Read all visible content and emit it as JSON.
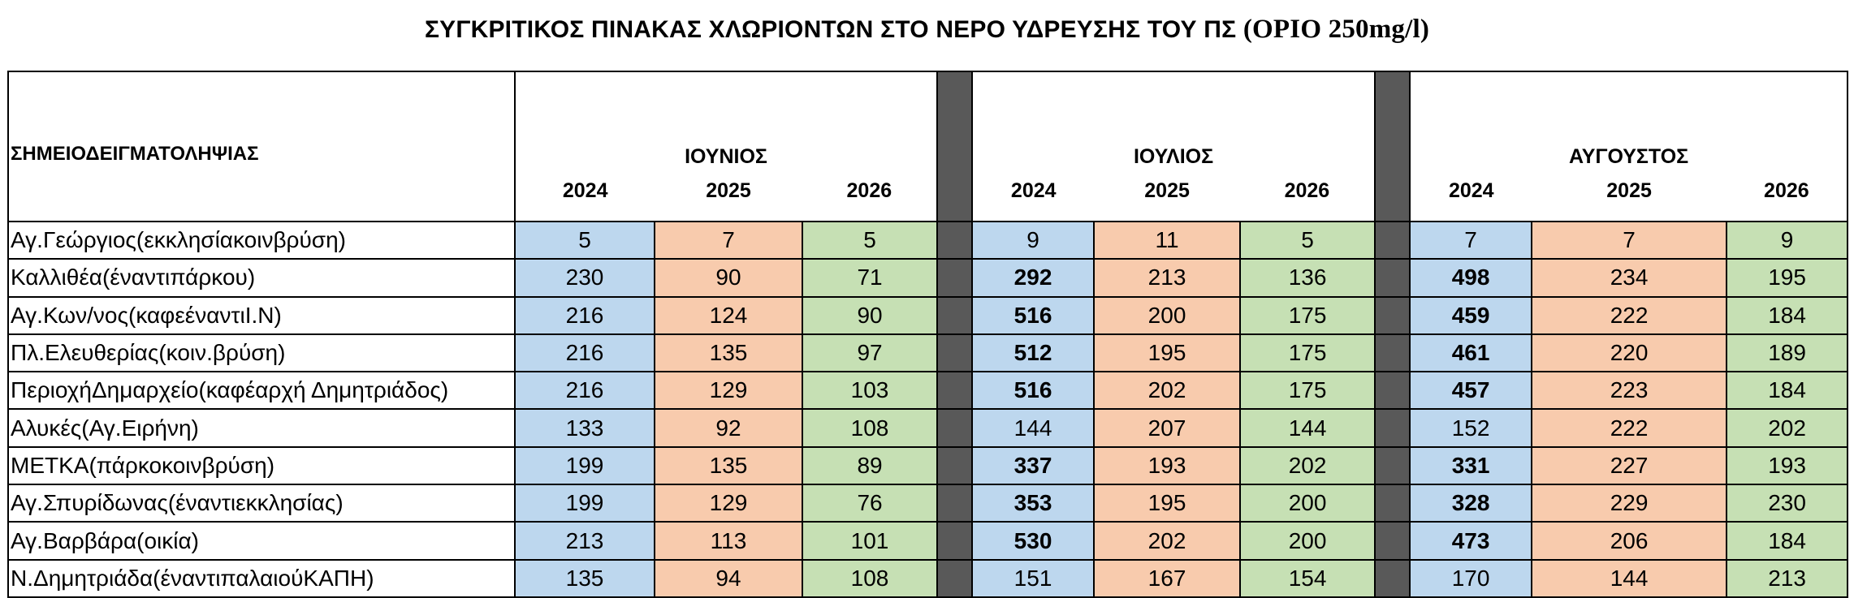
{
  "title": {
    "main": "ΣΥΓΚΡΙΤΙΚΟΣ ΠΙΝΑΚΑΣ ΧΛΩΡΙΟΝΤΩΝ ΣΤΟ ΝΕΡΟ ΥΔΡΕΥΣΗΣ ΤΟΥ ΠΣ",
    "limit": "(ΟΡΙΟ 250mg/l)"
  },
  "header": {
    "point_label": "ΣΗΜΕΙΟΔΕΙΓΜΑΤΟΛΗΨΙΑΣ",
    "months": [
      {
        "name": "ΙΟΥΝΙΟΣ",
        "years": [
          "2024",
          "2025",
          "2026"
        ]
      },
      {
        "name": "ΙΟΥΛΙΟΣ",
        "years": [
          "2024",
          "2025",
          "2026"
        ]
      },
      {
        "name": "ΑΥΓΟΥΣΤΟΣ",
        "years": [
          "2024",
          "2025",
          "2026"
        ]
      }
    ]
  },
  "colors": {
    "y2024": "#bdd7ee",
    "y2025": "#f8cbad",
    "y2026": "#c6e0b4",
    "separator": "#595959"
  },
  "rows": [
    {
      "name": "Αγ.Γεώργιος(εκκλησίακοινβρύση)",
      "values": [
        "5",
        "7",
        "5",
        "9",
        "11",
        "5",
        "7",
        "7",
        "9"
      ],
      "bold": []
    },
    {
      "name": "Καλλιθέα(έναντιπάρκου)",
      "values": [
        "230",
        "90",
        "71",
        "292",
        "213",
        "136",
        "498",
        "234",
        "195"
      ],
      "bold": [
        3,
        6
      ]
    },
    {
      "name": "Αγ.Κων/νος(καφεέναντιΙ.Ν)",
      "values": [
        "216",
        "124",
        "90",
        "516",
        "200",
        "175",
        "459",
        "222",
        "184"
      ],
      "bold": [
        3,
        6
      ]
    },
    {
      "name": "Πλ.Ελευθερίας(κοιν.βρύση)",
      "values": [
        "216",
        "135",
        "97",
        "512",
        "195",
        "175",
        "461",
        "220",
        "189"
      ],
      "bold": [
        3,
        6
      ]
    },
    {
      "name": "ΠεριοχήΔημαρχείο(καφέαρχή Δημητριάδος)",
      "values": [
        "216",
        "129",
        "103",
        "516",
        "202",
        "175",
        "457",
        "223",
        "184"
      ],
      "bold": [
        3,
        6
      ]
    },
    {
      "name": "Αλυκές(Αγ.Ειρήνη)",
      "values": [
        "133",
        "92",
        "108",
        "144",
        "207",
        "144",
        "152",
        "222",
        "202"
      ],
      "bold": []
    },
    {
      "name": "ΜΕΤΚΑ(πάρκοκοινβρύση)",
      "values": [
        "199",
        "135",
        "89",
        "337",
        "193",
        "202",
        "331",
        "227",
        "193"
      ],
      "bold": [
        3,
        6
      ]
    },
    {
      "name": "Αγ.Σπυρίδωνας(έναντιεκκλησίας)",
      "values": [
        "199",
        "129",
        "76",
        "353",
        "195",
        "200",
        "328",
        "229",
        "230"
      ],
      "bold": [
        3,
        6
      ]
    },
    {
      "name": "Αγ.Βαρβάρα(οικία)",
      "values": [
        "213",
        "113",
        "101",
        "530",
        "202",
        "200",
        "473",
        "206",
        "184"
      ],
      "bold": [
        3,
        6
      ]
    },
    {
      "name": "Ν.Δημητριάδα(έναντιπαλαιούΚΑΠΗ)",
      "values": [
        "135",
        "94",
        "108",
        "151",
        "167",
        "154",
        "170",
        "144",
        "213"
      ],
      "bold": []
    }
  ]
}
